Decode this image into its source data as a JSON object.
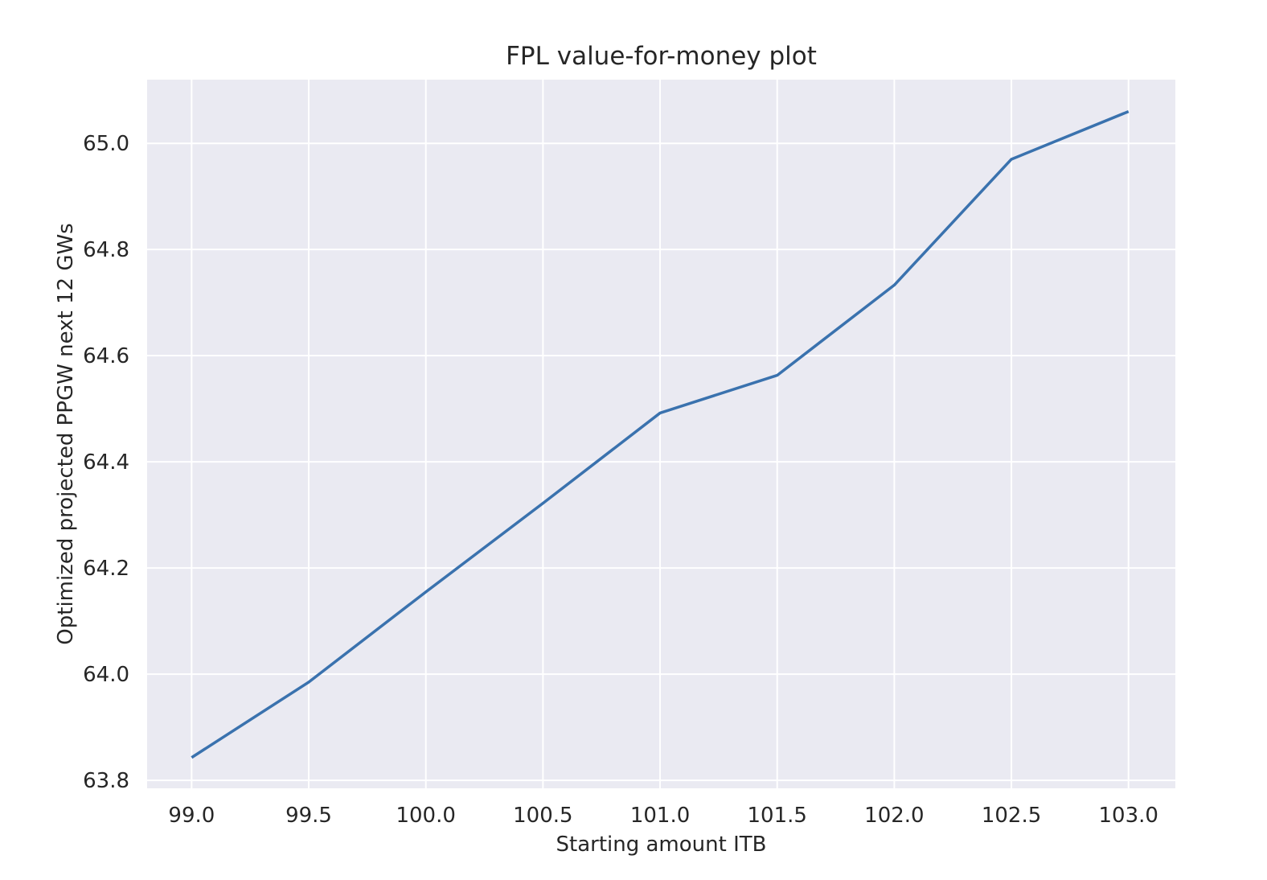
{
  "chart_data": {
    "type": "line",
    "title": "FPL value-for-money plot",
    "xlabel": "Starting amount ITB",
    "ylabel": "Optimized projected PPGW next 12 GWs",
    "xlim": [
      98.81,
      103.2
    ],
    "ylim": [
      63.785,
      65.12
    ],
    "xticks": [
      99.0,
      99.5,
      100.0,
      100.5,
      101.0,
      101.5,
      102.0,
      102.5,
      103.0
    ],
    "xtick_labels": [
      "99.0",
      "99.5",
      "100.0",
      "100.5",
      "101.0",
      "101.5",
      "102.0",
      "102.5",
      "103.0"
    ],
    "yticks": [
      63.8,
      64.0,
      64.2,
      64.4,
      64.6,
      64.8,
      65.0
    ],
    "ytick_labels": [
      "63.8",
      "64.0",
      "64.2",
      "64.4",
      "64.6",
      "64.8",
      "65.0"
    ],
    "grid": true,
    "legend": "none",
    "series": [
      {
        "x": [
          99.0,
          99.5,
          100.0,
          100.5,
          101.0,
          101.5,
          102.0,
          102.5,
          103.0
        ],
        "y": [
          63.843,
          63.985,
          64.155,
          64.322,
          64.492,
          64.563,
          64.733,
          64.97,
          65.06
        ]
      }
    ],
    "colors": {
      "background": "#eaeaf2",
      "grid": "#ffffff",
      "line": "#3a72ae",
      "text": "#262626"
    }
  }
}
